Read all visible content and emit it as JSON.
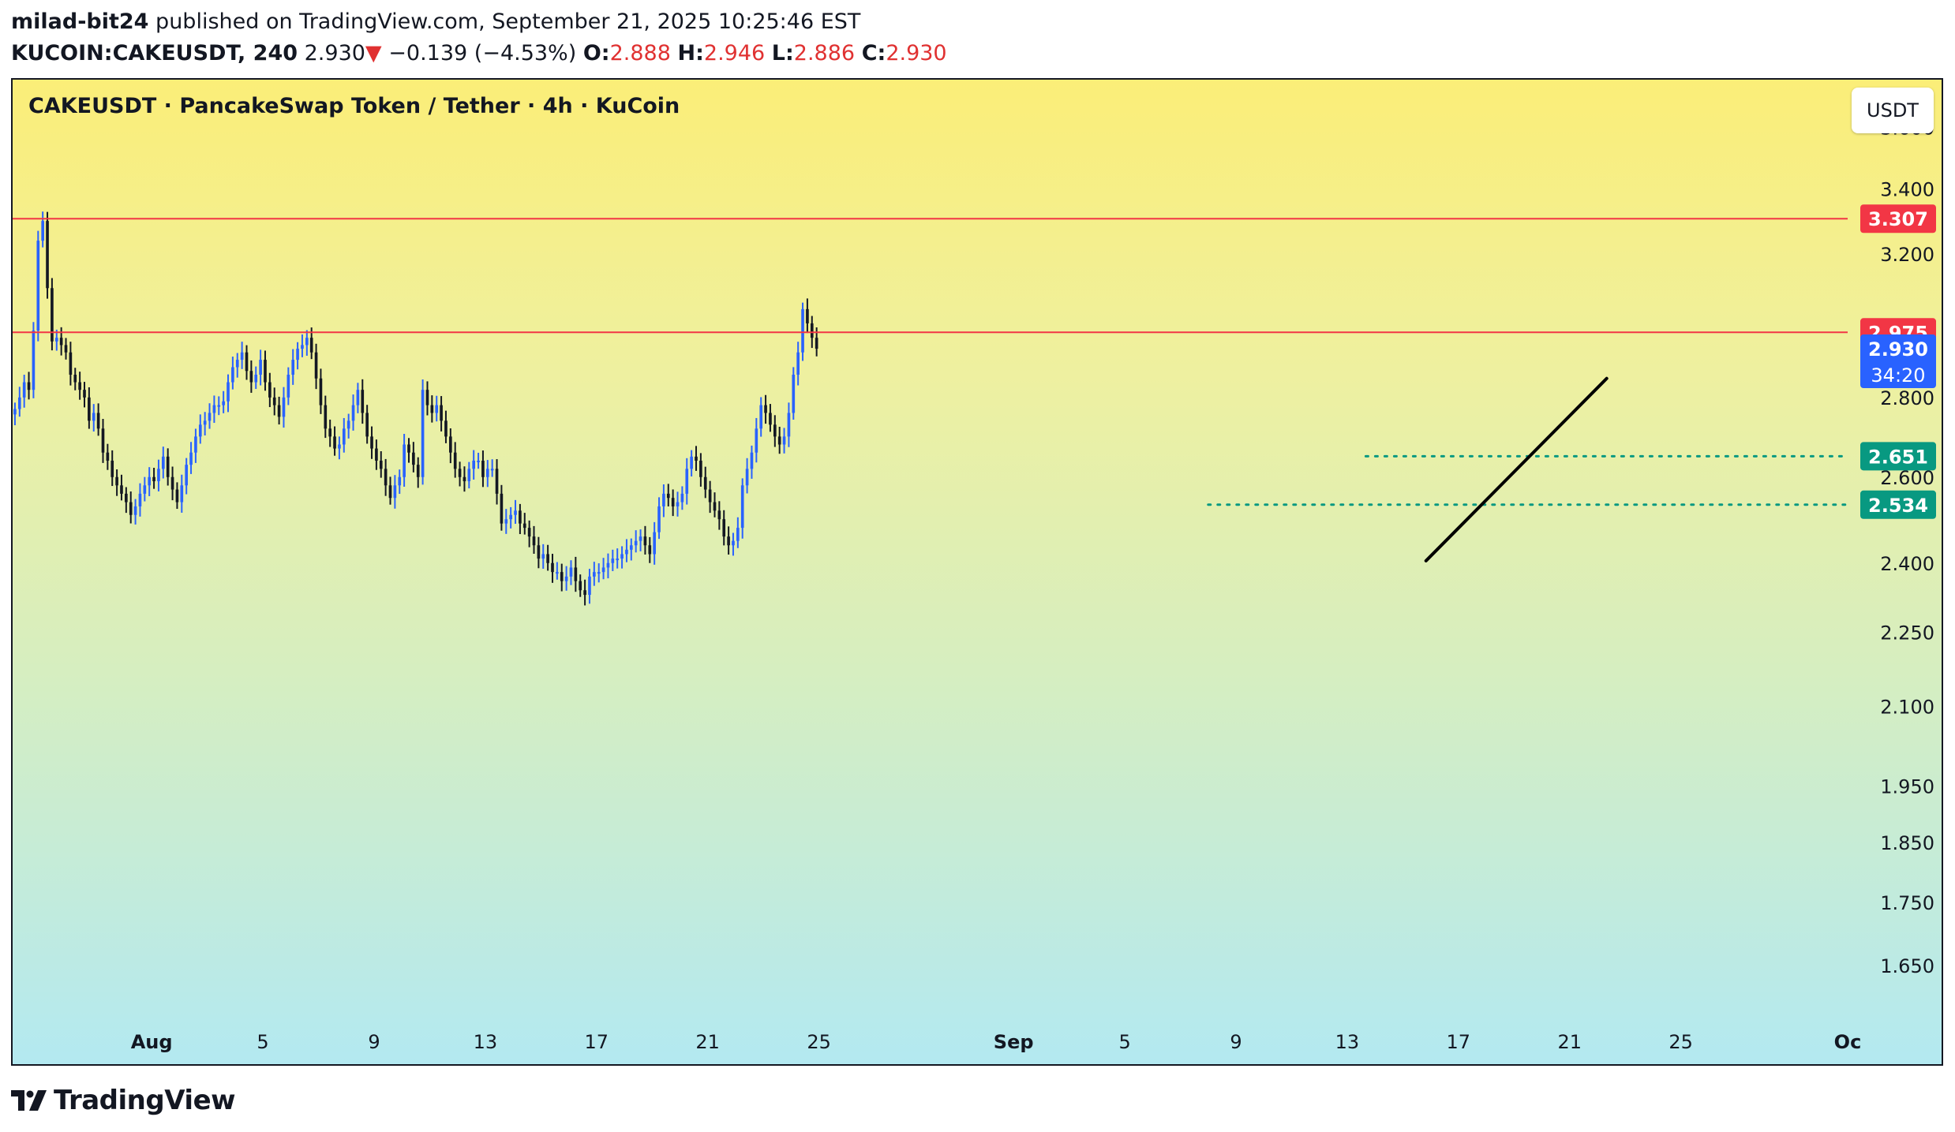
{
  "header": {
    "author": "milad-bit24",
    "published_text": " published on TradingView.com, September 21, 2025 10:25:46 EST",
    "symbol_interval": "KUCOIN:CAKEUSDT, 240",
    "last_price": "2.930",
    "change_arrow": "▼",
    "change": "−0.139 (−4.53%)",
    "o_label": "O:",
    "o_value": "2.888",
    "h_label": "H:",
    "h_value": "2.946",
    "l_label": "L:",
    "l_value": "2.886",
    "c_label": "C:",
    "c_value": "2.930"
  },
  "chart_title": "CAKEUSDT · PancakeSwap Token / Tether · 4h · KuCoin",
  "currency_button": "USDT",
  "footer": {
    "brand": "TradingView",
    "logo_icon": "tradingview-logo-icon"
  },
  "colors": {
    "up": "#2962ff",
    "down": "#131722",
    "resistance": "#f23645",
    "support": "#089981",
    "last_price": "#2962ff",
    "trendline": "#000000"
  },
  "chart_data": {
    "type": "candlestick",
    "title": "CAKEUSDT · PancakeSwap Token / Tether · 4h · KuCoin",
    "scale": "log",
    "ylim": [
      1.58,
      3.72
    ],
    "xlim": [
      "2025-07-27T00:00",
      "2025-10-01T00:00"
    ],
    "y_ticks": [
      "3.600",
      "3.400",
      "3.200",
      "2.800",
      "2.600",
      "2.400",
      "2.250",
      "2.100",
      "1.950",
      "1.850",
      "1.750",
      "1.650"
    ],
    "x_ticks": [
      {
        "label": "Aug",
        "date": "2025-08-01T00:00"
      },
      {
        "label": "5",
        "date": "2025-08-05T00:00"
      },
      {
        "label": "9",
        "date": "2025-08-09T00:00"
      },
      {
        "label": "13",
        "date": "2025-08-13T00:00"
      },
      {
        "label": "17",
        "date": "2025-08-17T00:00"
      },
      {
        "label": "21",
        "date": "2025-08-21T00:00"
      },
      {
        "label": "25",
        "date": "2025-08-25T00:00"
      },
      {
        "label": "Sep",
        "date": "2025-09-01T00:00"
      },
      {
        "label": "5",
        "date": "2025-09-05T00:00"
      },
      {
        "label": "9",
        "date": "2025-09-09T00:00"
      },
      {
        "label": "13",
        "date": "2025-09-13T00:00"
      },
      {
        "label": "17",
        "date": "2025-09-17T00:00"
      },
      {
        "label": "21",
        "date": "2025-09-21T00:00"
      },
      {
        "label": "25",
        "date": "2025-09-25T00:00"
      },
      {
        "label": "Oc",
        "date": "2025-10-01T00:00"
      }
    ],
    "start": "2025-07-27T00:00",
    "interval_hours": 4,
    "closes": [
      2.77,
      2.8,
      2.84,
      2.82,
      2.98,
      3.24,
      3.3,
      3.1,
      2.95,
      2.96,
      2.94,
      2.92,
      2.86,
      2.84,
      2.82,
      2.8,
      2.74,
      2.76,
      2.72,
      2.66,
      2.64,
      2.6,
      2.58,
      2.56,
      2.54,
      2.51,
      2.53,
      2.56,
      2.58,
      2.6,
      2.59,
      2.62,
      2.65,
      2.6,
      2.57,
      2.54,
      2.58,
      2.63,
      2.66,
      2.7,
      2.73,
      2.74,
      2.76,
      2.78,
      2.78,
      2.79,
      2.84,
      2.88,
      2.9,
      2.92,
      2.87,
      2.84,
      2.86,
      2.9,
      2.84,
      2.8,
      2.78,
      2.75,
      2.8,
      2.86,
      2.9,
      2.93,
      2.94,
      2.96,
      2.92,
      2.85,
      2.78,
      2.72,
      2.7,
      2.67,
      2.68,
      2.72,
      2.74,
      2.78,
      2.82,
      2.76,
      2.7,
      2.67,
      2.64,
      2.62,
      2.58,
      2.55,
      2.58,
      2.6,
      2.68,
      2.66,
      2.63,
      2.6,
      2.82,
      2.78,
      2.76,
      2.78,
      2.74,
      2.7,
      2.66,
      2.62,
      2.6,
      2.59,
      2.62,
      2.64,
      2.64,
      2.6,
      2.62,
      2.62,
      2.56,
      2.49,
      2.5,
      2.51,
      2.52,
      2.49,
      2.48,
      2.46,
      2.44,
      2.41,
      2.42,
      2.4,
      2.38,
      2.38,
      2.36,
      2.37,
      2.39,
      2.36,
      2.34,
      2.33,
      2.37,
      2.38,
      2.38,
      2.39,
      2.4,
      2.41,
      2.41,
      2.42,
      2.43,
      2.44,
      2.45,
      2.46,
      2.44,
      2.42,
      2.47,
      2.53,
      2.56,
      2.55,
      2.53,
      2.54,
      2.56,
      2.62,
      2.65,
      2.64,
      2.6,
      2.57,
      2.54,
      2.52,
      2.5,
      2.46,
      2.44,
      2.45,
      2.48,
      2.58,
      2.62,
      2.66,
      2.72,
      2.78,
      2.76,
      2.73,
      2.7,
      2.68,
      2.7,
      2.76,
      2.86,
      2.92,
      3.04,
      3.0,
      2.96,
      2.93
    ]
  },
  "levels": [
    {
      "price": 3.307,
      "label": "3.307",
      "kind": "resistance"
    },
    {
      "price": 2.975,
      "label": "2.975",
      "kind": "resistance"
    },
    {
      "price": 2.651,
      "label": "2.651",
      "kind": "support",
      "from": "2025-09-13T16:00"
    },
    {
      "price": 2.534,
      "label": "2.534",
      "kind": "support",
      "from": "2025-09-08T00:00"
    }
  ],
  "last_price_label": {
    "price": 2.93,
    "label": "2.930",
    "countdown": "34:20"
  },
  "trendline": {
    "from": {
      "date": "2025-09-15T20:00",
      "price": 2.405
    },
    "to": {
      "date": "2025-09-22T08:00",
      "price": 2.85
    }
  }
}
